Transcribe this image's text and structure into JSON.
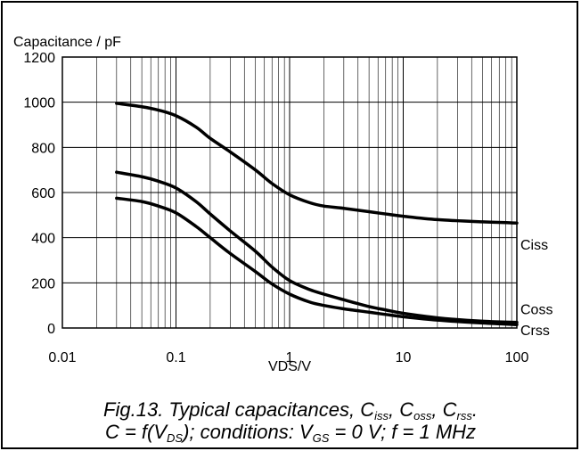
{
  "chart_data": {
    "type": "line",
    "ylabel": "Capacitance / pF",
    "xlabel": "VDS/V",
    "xscale": "log",
    "xlim": [
      0.01,
      100
    ],
    "ylim": [
      0,
      1200
    ],
    "grid": true,
    "x_ticks": [
      "0.01",
      "0.1",
      "1",
      "10",
      "100"
    ],
    "y_ticks": [
      "0",
      "200",
      "400",
      "600",
      "800",
      "1000",
      "1200"
    ],
    "series": [
      {
        "name": "Ciss",
        "x": [
          0.03,
          0.05,
          0.07,
          0.1,
          0.15,
          0.2,
          0.3,
          0.5,
          0.7,
          1,
          1.5,
          2,
          3,
          5,
          7,
          10,
          20,
          50,
          100
        ],
        "values": [
          995,
          980,
          965,
          940,
          890,
          840,
          780,
          700,
          640,
          590,
          555,
          540,
          530,
          515,
          505,
          495,
          480,
          470,
          465
        ]
      },
      {
        "name": "Coss",
        "x": [
          0.03,
          0.05,
          0.07,
          0.1,
          0.15,
          0.2,
          0.3,
          0.5,
          0.7,
          1,
          1.5,
          2,
          3,
          5,
          7,
          10,
          20,
          50,
          100
        ],
        "values": [
          690,
          670,
          650,
          620,
          560,
          505,
          430,
          340,
          270,
          210,
          170,
          150,
          125,
          95,
          80,
          65,
          45,
          30,
          25
        ]
      },
      {
        "name": "Crss",
        "x": [
          0.03,
          0.05,
          0.07,
          0.1,
          0.15,
          0.2,
          0.3,
          0.5,
          0.7,
          1,
          1.5,
          2,
          3,
          5,
          7,
          10,
          20,
          50,
          100
        ],
        "values": [
          575,
          560,
          540,
          510,
          450,
          400,
          330,
          250,
          195,
          150,
          115,
          100,
          85,
          70,
          60,
          50,
          35,
          22,
          15
        ]
      }
    ],
    "caption_line1": {
      "prefix": "Fig.13.   Typical capacitances, C",
      "sub1": "iss",
      "mid1": ", C",
      "sub2": "oss",
      "mid2": ", C",
      "sub3": "rss",
      "suffix": "."
    },
    "caption_line2": {
      "prefix": "C = f(V",
      "sub1": "DS",
      "mid1": "); conditions: V",
      "sub2": "GS",
      "suffix": " = 0 V; f = 1 MHz"
    }
  }
}
